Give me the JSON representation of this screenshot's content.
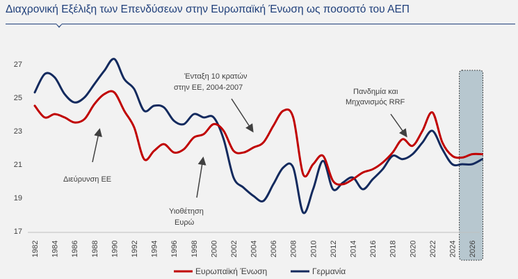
{
  "header": {
    "title": "Διαχρονική Εξέλιξη των Επενδύσεων στην Ευρωπαϊκή Ένωση ως ποσοστό του ΑΕΠ"
  },
  "colors": {
    "eu": "#c00000",
    "de": "#132a5e",
    "forecast_band": "#b7c7cf"
  },
  "annotations": {
    "a1": "Διεύρυνση ΕΕ",
    "a2_l1": "Υιοθέτηση",
    "a2_l2": "Ευρώ",
    "a3_l1": "Ένταξη 10 κρατών",
    "a3_l2": "στην ΕΕ, 2004-2007",
    "a4_l1": "Πανδημία και",
    "a4_l2": "Μηχανισμός RRF"
  },
  "chart_data": {
    "type": "line",
    "title": "Διαχρονική Εξέλιξη των Επενδύσεων στην Ευρωπαϊκή Ένωση ως ποσοστό του ΑΕΠ",
    "xlabel": "",
    "ylabel": "",
    "ylim": [
      17,
      27
    ],
    "yticks": [
      "17",
      "19",
      "21",
      "23",
      "25",
      "27"
    ],
    "xticks": [
      "1982",
      "1984",
      "1986",
      "1988",
      "1990",
      "1992",
      "1994",
      "1996",
      "1998",
      "2000",
      "2002",
      "2004",
      "2006",
      "2008",
      "2010",
      "2012",
      "2014",
      "2016",
      "2018",
      "2020",
      "2022",
      "2024",
      "2026"
    ],
    "grid": false,
    "legend_position": "bottom",
    "forecast_range": [
      2024.5,
      2027.5
    ],
    "series": [
      {
        "name": "Ευρωπαϊκή Ένωση",
        "x": [
          1982,
          1983,
          1984,
          1985,
          1986,
          1987,
          1988,
          1989,
          1990,
          1991,
          1992,
          1993,
          1994,
          1995,
          1996,
          1997,
          1998,
          1999,
          2000,
          2001,
          2002,
          2003,
          2004,
          2005,
          2006,
          2007,
          2008,
          2009,
          2010,
          2011,
          2012,
          2013,
          2014,
          2015,
          2016,
          2017,
          2018,
          2019,
          2020,
          2021,
          2022,
          2023,
          2024,
          2025,
          2026,
          2027
        ],
        "values": [
          24.5,
          23.8,
          24.0,
          23.8,
          23.5,
          23.7,
          24.6,
          25.2,
          25.3,
          24.2,
          23.2,
          21.3,
          21.8,
          22.2,
          21.7,
          21.9,
          22.6,
          22.8,
          23.4,
          23.0,
          21.8,
          21.7,
          22.0,
          22.3,
          23.3,
          24.2,
          23.8,
          20.4,
          21.0,
          21.5,
          20.0,
          19.8,
          20.1,
          20.5,
          20.7,
          21.1,
          21.7,
          22.5,
          22.1,
          23.0,
          24.1,
          22.3,
          21.5,
          21.4,
          21.6,
          21.6
        ]
      },
      {
        "name": "Γερμανία",
        "x": [
          1982,
          1983,
          1984,
          1985,
          1986,
          1987,
          1988,
          1989,
          1990,
          1991,
          1992,
          1993,
          1994,
          1995,
          1996,
          1997,
          1998,
          1999,
          2000,
          2001,
          2002,
          2003,
          2004,
          2005,
          2006,
          2007,
          2008,
          2009,
          2010,
          2011,
          2012,
          2013,
          2014,
          2015,
          2016,
          2017,
          2018,
          2019,
          2020,
          2021,
          2022,
          2023,
          2024,
          2025,
          2026,
          2027
        ],
        "values": [
          25.3,
          26.4,
          26.2,
          25.2,
          24.7,
          25.0,
          25.8,
          26.6,
          27.3,
          26.1,
          25.5,
          24.2,
          24.5,
          24.4,
          23.6,
          23.4,
          24.0,
          23.8,
          23.8,
          22.5,
          20.2,
          19.6,
          19.1,
          18.8,
          19.8,
          20.8,
          20.8,
          18.1,
          19.5,
          21.2,
          19.5,
          19.9,
          20.2,
          19.5,
          20.1,
          20.7,
          21.5,
          21.3,
          21.6,
          22.3,
          23.0,
          21.9,
          21.0,
          21.0,
          21.0,
          21.3
        ]
      }
    ]
  }
}
